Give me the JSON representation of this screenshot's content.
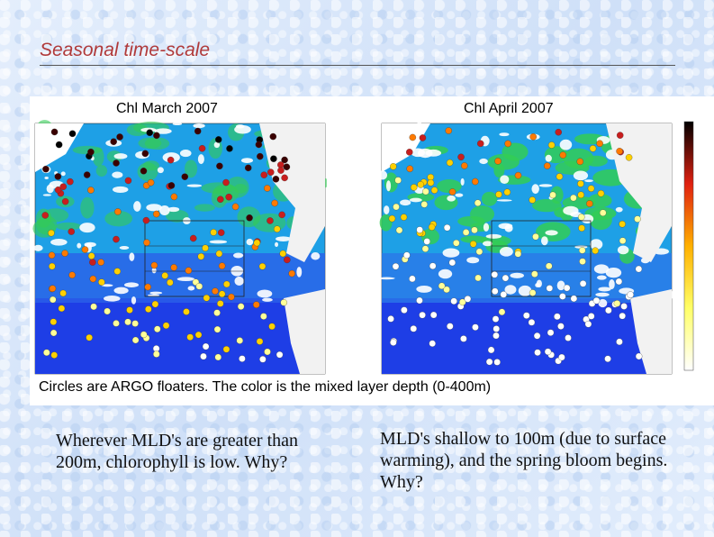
{
  "slide": {
    "title": "Seasonal time-scale"
  },
  "figure": {
    "maps": [
      {
        "label": "Chl March 2007"
      },
      {
        "label": "Chl April 2007"
      }
    ],
    "caption": "Circles are ARGO floaters. The color is the mixed layer depth (0-400m)"
  },
  "notes": {
    "left": "Wherever MLD's are greater than 200m, chlorophyll is low. Why?",
    "right": "MLD's shallow to 100m (due to surface warming), and the spring bloom begins. Why?"
  },
  "colors": {
    "title": "#b03a3a",
    "ocean_low_chl": "#1e3ee6",
    "ocean_mid_chl": "#1ea0e6",
    "ocean_high_chl": "#33cc55",
    "land": "#f2f2f2",
    "cloud": "#ffffff"
  }
}
